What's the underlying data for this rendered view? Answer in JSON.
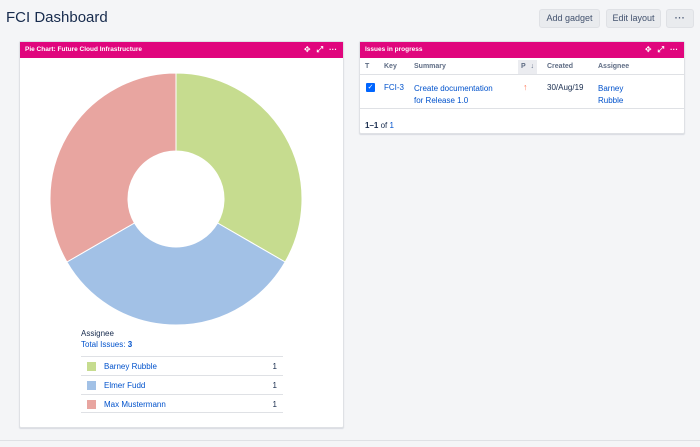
{
  "page": {
    "title": "FCI Dashboard",
    "buttons": {
      "add_gadget": "Add gadget",
      "edit_layout": "Edit layout",
      "more": "···"
    }
  },
  "pie_gadget": {
    "title": "Pie Chart: Future Cloud Infrastructure",
    "tools": {
      "move": "✥",
      "expand": "⤢",
      "more": "···"
    },
    "legend_heading": "Assignee",
    "total_label": "Total Issues:",
    "total_value": "3",
    "rows": [
      {
        "name": "Barney Rubble",
        "count": "1",
        "color": "#c6dc8f"
      },
      {
        "name": "Elmer Fudd",
        "count": "1",
        "color": "#a2c1e6"
      },
      {
        "name": "Max Mustermann",
        "count": "1",
        "color": "#e8a5a0"
      }
    ]
  },
  "chart_data": {
    "type": "pie",
    "categories": [
      "Barney Rubble",
      "Elmer Fudd",
      "Max Mustermann"
    ],
    "values": [
      1,
      1,
      1
    ],
    "colors": [
      "#c6dc8f",
      "#a2c1e6",
      "#e8a5a0"
    ],
    "donut": true
  },
  "issues_gadget": {
    "title": "Issues in progress",
    "tools": {
      "move": "✥",
      "expand": "⤢",
      "more": "···"
    },
    "columns": {
      "type": "T",
      "key": "Key",
      "summary": "Summary",
      "priority": "P",
      "sort": "↓",
      "created": "Created",
      "assignee": "Assignee"
    },
    "rows": [
      {
        "key": "FCI-3",
        "summary_line1": "Create documentation",
        "summary_line2": "for Release 1.0",
        "priority_icon": "↑",
        "created": "30/Aug/19",
        "assignee_line1": "Barney",
        "assignee_line2": "Rubble"
      }
    ],
    "pager": {
      "range": "1–1",
      "of": "of",
      "total": "1"
    }
  }
}
